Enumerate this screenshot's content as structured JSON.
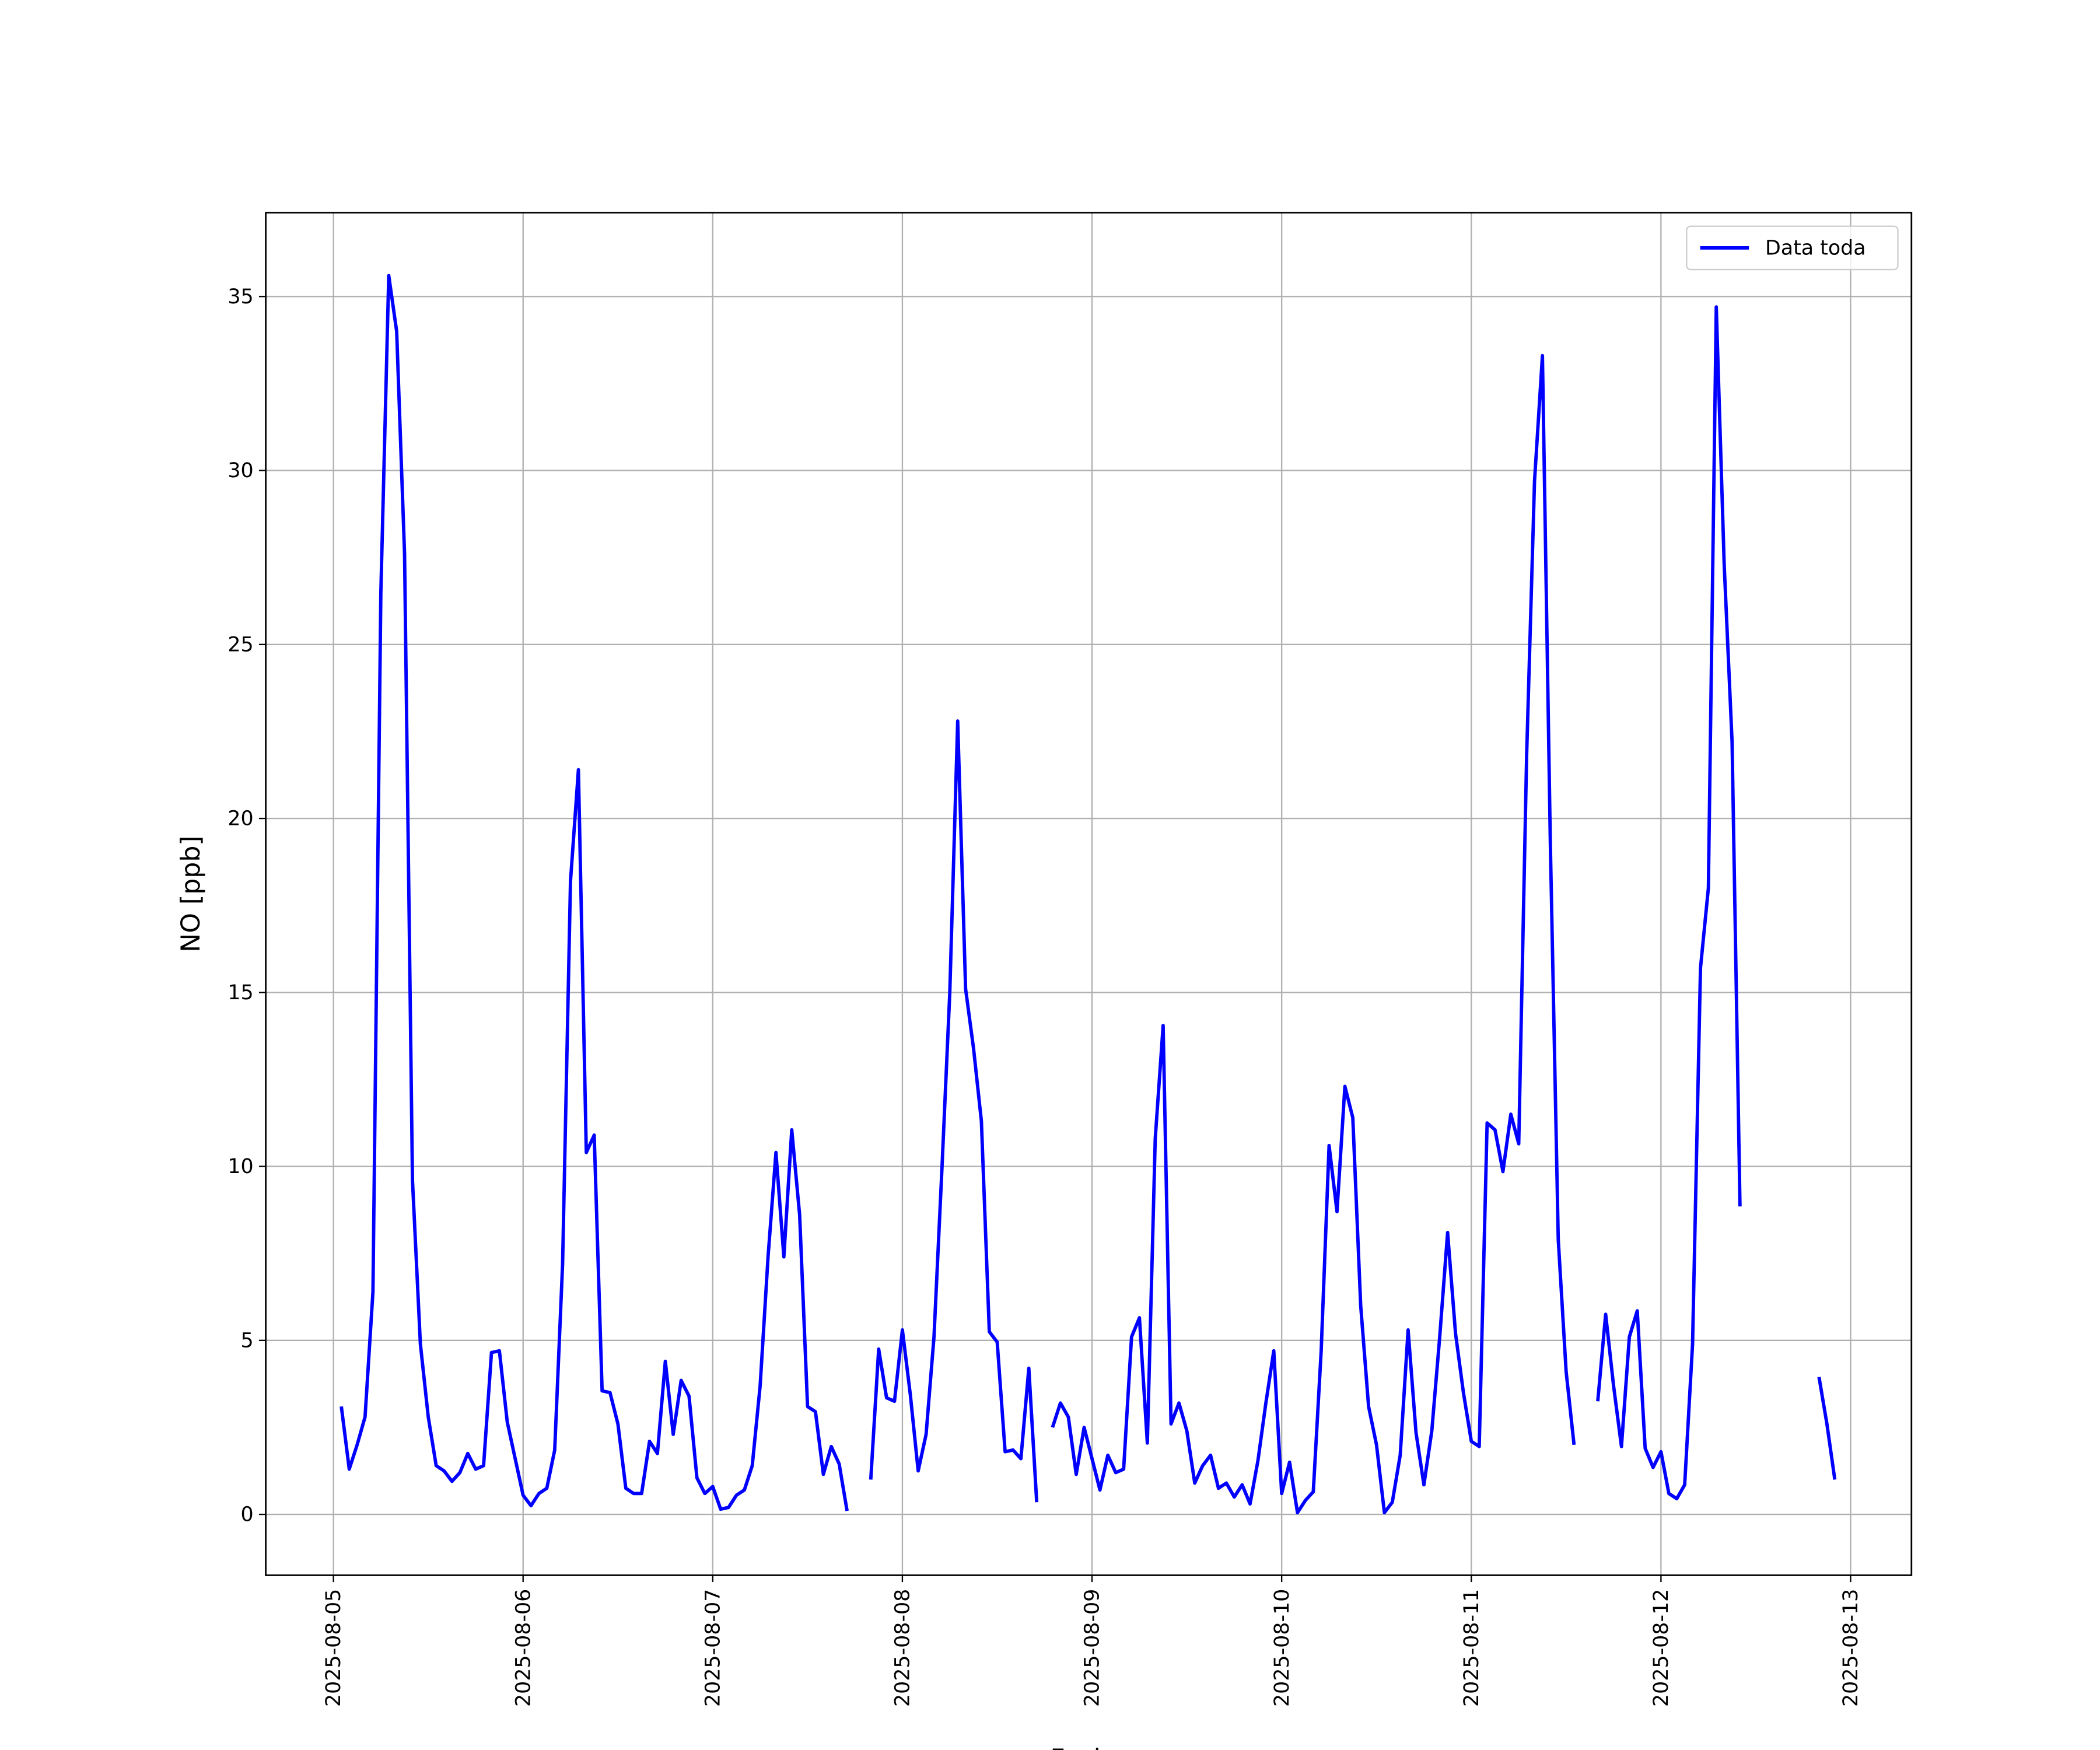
{
  "chart_data": {
    "type": "line",
    "xlabel": "Fecha",
    "ylabel": "NO [ppb]",
    "x": [
      "2025-08-05 01:00",
      "2025-08-05 02:00",
      "2025-08-05 03:00",
      "2025-08-05 04:00",
      "2025-08-05 05:00",
      "2025-08-05 06:00",
      "2025-08-05 07:00",
      "2025-08-05 08:00",
      "2025-08-05 09:00",
      "2025-08-05 10:00",
      "2025-08-05 11:00",
      "2025-08-05 12:00",
      "2025-08-05 13:00",
      "2025-08-05 14:00",
      "2025-08-05 15:00",
      "2025-08-05 16:00",
      "2025-08-05 17:00",
      "2025-08-05 18:00",
      "2025-08-05 19:00",
      "2025-08-05 20:00",
      "2025-08-05 21:00",
      "2025-08-05 22:00",
      "2025-08-05 23:00",
      "2025-08-06 00:00",
      "2025-08-06 01:00",
      "2025-08-06 02:00",
      "2025-08-06 03:00",
      "2025-08-06 04:00",
      "2025-08-06 05:00",
      "2025-08-06 06:00",
      "2025-08-06 07:00",
      "2025-08-06 08:00",
      "2025-08-06 09:00",
      "2025-08-06 10:00",
      "2025-08-06 11:00",
      "2025-08-06 12:00",
      "2025-08-06 13:00",
      "2025-08-06 14:00",
      "2025-08-06 15:00",
      "2025-08-06 16:00",
      "2025-08-06 17:00",
      "2025-08-06 18:00",
      "2025-08-06 19:00",
      "2025-08-06 20:00",
      "2025-08-06 21:00",
      "2025-08-06 22:00",
      "2025-08-06 23:00",
      "2025-08-07 00:00",
      "2025-08-07 01:00",
      "2025-08-07 02:00",
      "2025-08-07 03:00",
      "2025-08-07 04:00",
      "2025-08-07 05:00",
      "2025-08-07 06:00",
      "2025-08-07 07:00",
      "2025-08-07 08:00",
      "2025-08-07 09:00",
      "2025-08-07 10:00",
      "2025-08-07 11:00",
      "2025-08-07 12:00",
      "2025-08-07 13:00",
      "2025-08-07 14:00",
      "2025-08-07 15:00",
      "2025-08-07 16:00",
      "2025-08-07 17:00",
      "2025-08-07 18:00",
      "2025-08-07 19:00",
      "2025-08-07 20:00",
      "2025-08-07 21:00",
      "2025-08-07 22:00",
      "2025-08-07 23:00",
      "2025-08-08 00:00",
      "2025-08-08 01:00",
      "2025-08-08 02:00",
      "2025-08-08 03:00",
      "2025-08-08 04:00",
      "2025-08-08 05:00",
      "2025-08-08 06:00",
      "2025-08-08 07:00",
      "2025-08-08 08:00",
      "2025-08-08 09:00",
      "2025-08-08 10:00",
      "2025-08-08 11:00",
      "2025-08-08 12:00",
      "2025-08-08 13:00",
      "2025-08-08 14:00",
      "2025-08-08 15:00",
      "2025-08-08 16:00",
      "2025-08-08 17:00",
      "2025-08-08 18:00",
      "2025-08-08 19:00",
      "2025-08-08 20:00",
      "2025-08-08 21:00",
      "2025-08-08 22:00",
      "2025-08-08 23:00",
      "2025-08-09 00:00",
      "2025-08-09 01:00",
      "2025-08-09 02:00",
      "2025-08-09 03:00",
      "2025-08-09 04:00",
      "2025-08-09 05:00",
      "2025-08-09 06:00",
      "2025-08-09 07:00",
      "2025-08-09 08:00",
      "2025-08-09 09:00",
      "2025-08-09 10:00",
      "2025-08-09 11:00",
      "2025-08-09 12:00",
      "2025-08-09 13:00",
      "2025-08-09 14:00",
      "2025-08-09 15:00",
      "2025-08-09 16:00",
      "2025-08-09 17:00",
      "2025-08-09 18:00",
      "2025-08-09 19:00",
      "2025-08-09 20:00",
      "2025-08-09 21:00",
      "2025-08-09 22:00",
      "2025-08-09 23:00",
      "2025-08-10 00:00",
      "2025-08-10 01:00",
      "2025-08-10 02:00",
      "2025-08-10 03:00",
      "2025-08-10 04:00",
      "2025-08-10 05:00",
      "2025-08-10 06:00",
      "2025-08-10 07:00",
      "2025-08-10 08:00",
      "2025-08-10 09:00",
      "2025-08-10 10:00",
      "2025-08-10 11:00",
      "2025-08-10 12:00",
      "2025-08-10 13:00",
      "2025-08-10 14:00",
      "2025-08-10 15:00",
      "2025-08-10 16:00",
      "2025-08-10 17:00",
      "2025-08-10 18:00",
      "2025-08-10 19:00",
      "2025-08-10 20:00",
      "2025-08-10 21:00",
      "2025-08-10 22:00",
      "2025-08-10 23:00",
      "2025-08-11 00:00",
      "2025-08-11 01:00",
      "2025-08-11 02:00",
      "2025-08-11 03:00",
      "2025-08-11 04:00",
      "2025-08-11 05:00",
      "2025-08-11 06:00",
      "2025-08-11 07:00",
      "2025-08-11 08:00",
      "2025-08-11 09:00",
      "2025-08-11 10:00",
      "2025-08-11 11:00",
      "2025-08-11 12:00",
      "2025-08-11 13:00",
      "2025-08-11 14:00",
      "2025-08-11 15:00",
      "2025-08-11 16:00",
      "2025-08-11 17:00",
      "2025-08-11 18:00",
      "2025-08-11 19:00",
      "2025-08-11 20:00",
      "2025-08-11 21:00",
      "2025-08-11 22:00",
      "2025-08-11 23:00",
      "2025-08-12 00:00",
      "2025-08-12 01:00",
      "2025-08-12 02:00",
      "2025-08-12 03:00",
      "2025-08-12 04:00",
      "2025-08-12 05:00",
      "2025-08-12 06:00",
      "2025-08-12 07:00",
      "2025-08-12 08:00",
      "2025-08-12 09:00",
      "2025-08-12 10:00",
      "2025-08-12 11:00",
      "2025-08-12 12:00",
      "2025-08-12 13:00",
      "2025-08-12 14:00",
      "2025-08-12 15:00",
      "2025-08-12 16:00",
      "2025-08-12 17:00",
      "2025-08-12 18:00",
      "2025-08-12 19:00",
      "2025-08-12 20:00",
      "2025-08-12 21:00",
      "2025-08-12 22:00"
    ],
    "series": [
      {
        "name": "Data toda",
        "color": "#0000ff",
        "values": [
          3.1,
          1.3,
          2.0,
          2.8,
          6.4,
          26.5,
          35.6,
          34.0,
          27.6,
          9.6,
          4.9,
          2.8,
          1.4,
          1.25,
          0.95,
          1.2,
          1.75,
          1.3,
          1.4,
          4.65,
          4.7,
          2.65,
          1.6,
          0.55,
          0.25,
          0.6,
          0.75,
          1.85,
          7.2,
          18.2,
          21.4,
          10.4,
          10.9,
          3.55,
          3.5,
          2.6,
          0.75,
          0.6,
          0.6,
          2.1,
          1.75,
          4.4,
          2.3,
          3.85,
          3.4,
          1.05,
          0.6,
          0.8,
          0.15,
          0.2,
          0.55,
          0.7,
          1.4,
          3.7,
          7.4,
          10.4,
          7.4,
          11.05,
          8.6,
          3.1,
          2.95,
          1.15,
          1.95,
          1.45,
          0.1,
          null,
          null,
          1.0,
          4.75,
          3.35,
          3.25,
          5.3,
          3.45,
          1.25,
          2.3,
          5.1,
          9.9,
          15.0,
          22.8,
          15.1,
          13.4,
          11.3,
          5.25,
          4.95,
          1.8,
          1.85,
          1.6,
          4.2,
          0.35,
          null,
          2.5,
          3.2,
          2.8,
          1.15,
          2.5,
          1.6,
          0.7,
          1.7,
          1.2,
          1.3,
          5.1,
          5.65,
          2.05,
          10.8,
          14.05,
          2.6,
          3.2,
          2.4,
          0.9,
          1.4,
          1.7,
          0.75,
          0.9,
          0.5,
          0.85,
          0.3,
          1.55,
          3.2,
          4.7,
          0.6,
          1.5,
          0.05,
          0.4,
          0.65,
          4.7,
          10.6,
          8.7,
          12.3,
          11.4,
          6.0,
          3.1,
          2.0,
          0.05,
          0.35,
          1.7,
          5.3,
          2.35,
          0.85,
          2.4,
          5.1,
          8.1,
          5.2,
          3.5,
          2.1,
          1.95,
          11.25,
          11.05,
          9.85,
          11.5,
          10.65,
          21.8,
          29.7,
          33.3,
          19.3,
          7.9,
          4.1,
          2.0,
          null,
          null,
          3.25,
          5.75,
          3.7,
          1.95,
          5.1,
          5.85,
          1.9,
          1.35,
          1.8,
          0.6,
          0.45,
          0.85,
          4.9,
          15.7,
          18.0,
          34.7,
          27.3,
          22.2,
          8.85,
          null,
          null,
          null,
          null,
          null,
          null,
          null,
          null,
          null,
          3.95,
          2.6,
          1.0
        ]
      }
    ],
    "xlim": [
      "2025-08-04 15:26",
      "2025-08-13 07:42"
    ],
    "xticks": [
      "2025-08-05",
      "2025-08-06",
      "2025-08-07",
      "2025-08-08",
      "2025-08-09",
      "2025-08-10",
      "2025-08-11",
      "2025-08-12",
      "2025-08-13"
    ],
    "ylim": [
      -1.75,
      37.41
    ],
    "yticks": [
      0,
      5,
      10,
      15,
      20,
      25,
      30,
      35
    ],
    "grid": true,
    "legend": "upper right"
  }
}
